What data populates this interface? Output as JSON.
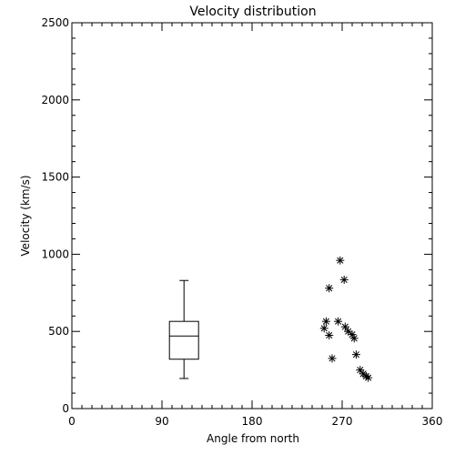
{
  "chart_data": {
    "type": "box-and-scatter",
    "title": "Velocity distribution",
    "xlabel": "Angle from north",
    "ylabel": "Velocity (km/s)",
    "xlim": [
      0,
      360
    ],
    "ylim": [
      0,
      2500
    ],
    "x_ticks": [
      0,
      90,
      180,
      270,
      360
    ],
    "y_ticks": [
      0,
      500,
      1000,
      1500,
      2000,
      2500
    ],
    "x_minor_step": 10,
    "y_minor_step": 100,
    "grid": false,
    "box": {
      "x": 112,
      "min": 195,
      "q1": 320,
      "median": 470,
      "q3": 565,
      "max": 830
    },
    "points": [
      {
        "x": 257,
        "y": 780
      },
      {
        "x": 254,
        "y": 565
      },
      {
        "x": 252,
        "y": 520
      },
      {
        "x": 257,
        "y": 475
      },
      {
        "x": 260,
        "y": 325
      },
      {
        "x": 266,
        "y": 565
      },
      {
        "x": 268,
        "y": 960
      },
      {
        "x": 272,
        "y": 835
      },
      {
        "x": 273,
        "y": 530
      },
      {
        "x": 276,
        "y": 500
      },
      {
        "x": 280,
        "y": 480
      },
      {
        "x": 282,
        "y": 455
      },
      {
        "x": 284,
        "y": 350
      },
      {
        "x": 288,
        "y": 250
      },
      {
        "x": 291,
        "y": 225
      },
      {
        "x": 294,
        "y": 210
      },
      {
        "x": 296,
        "y": 200
      }
    ]
  }
}
